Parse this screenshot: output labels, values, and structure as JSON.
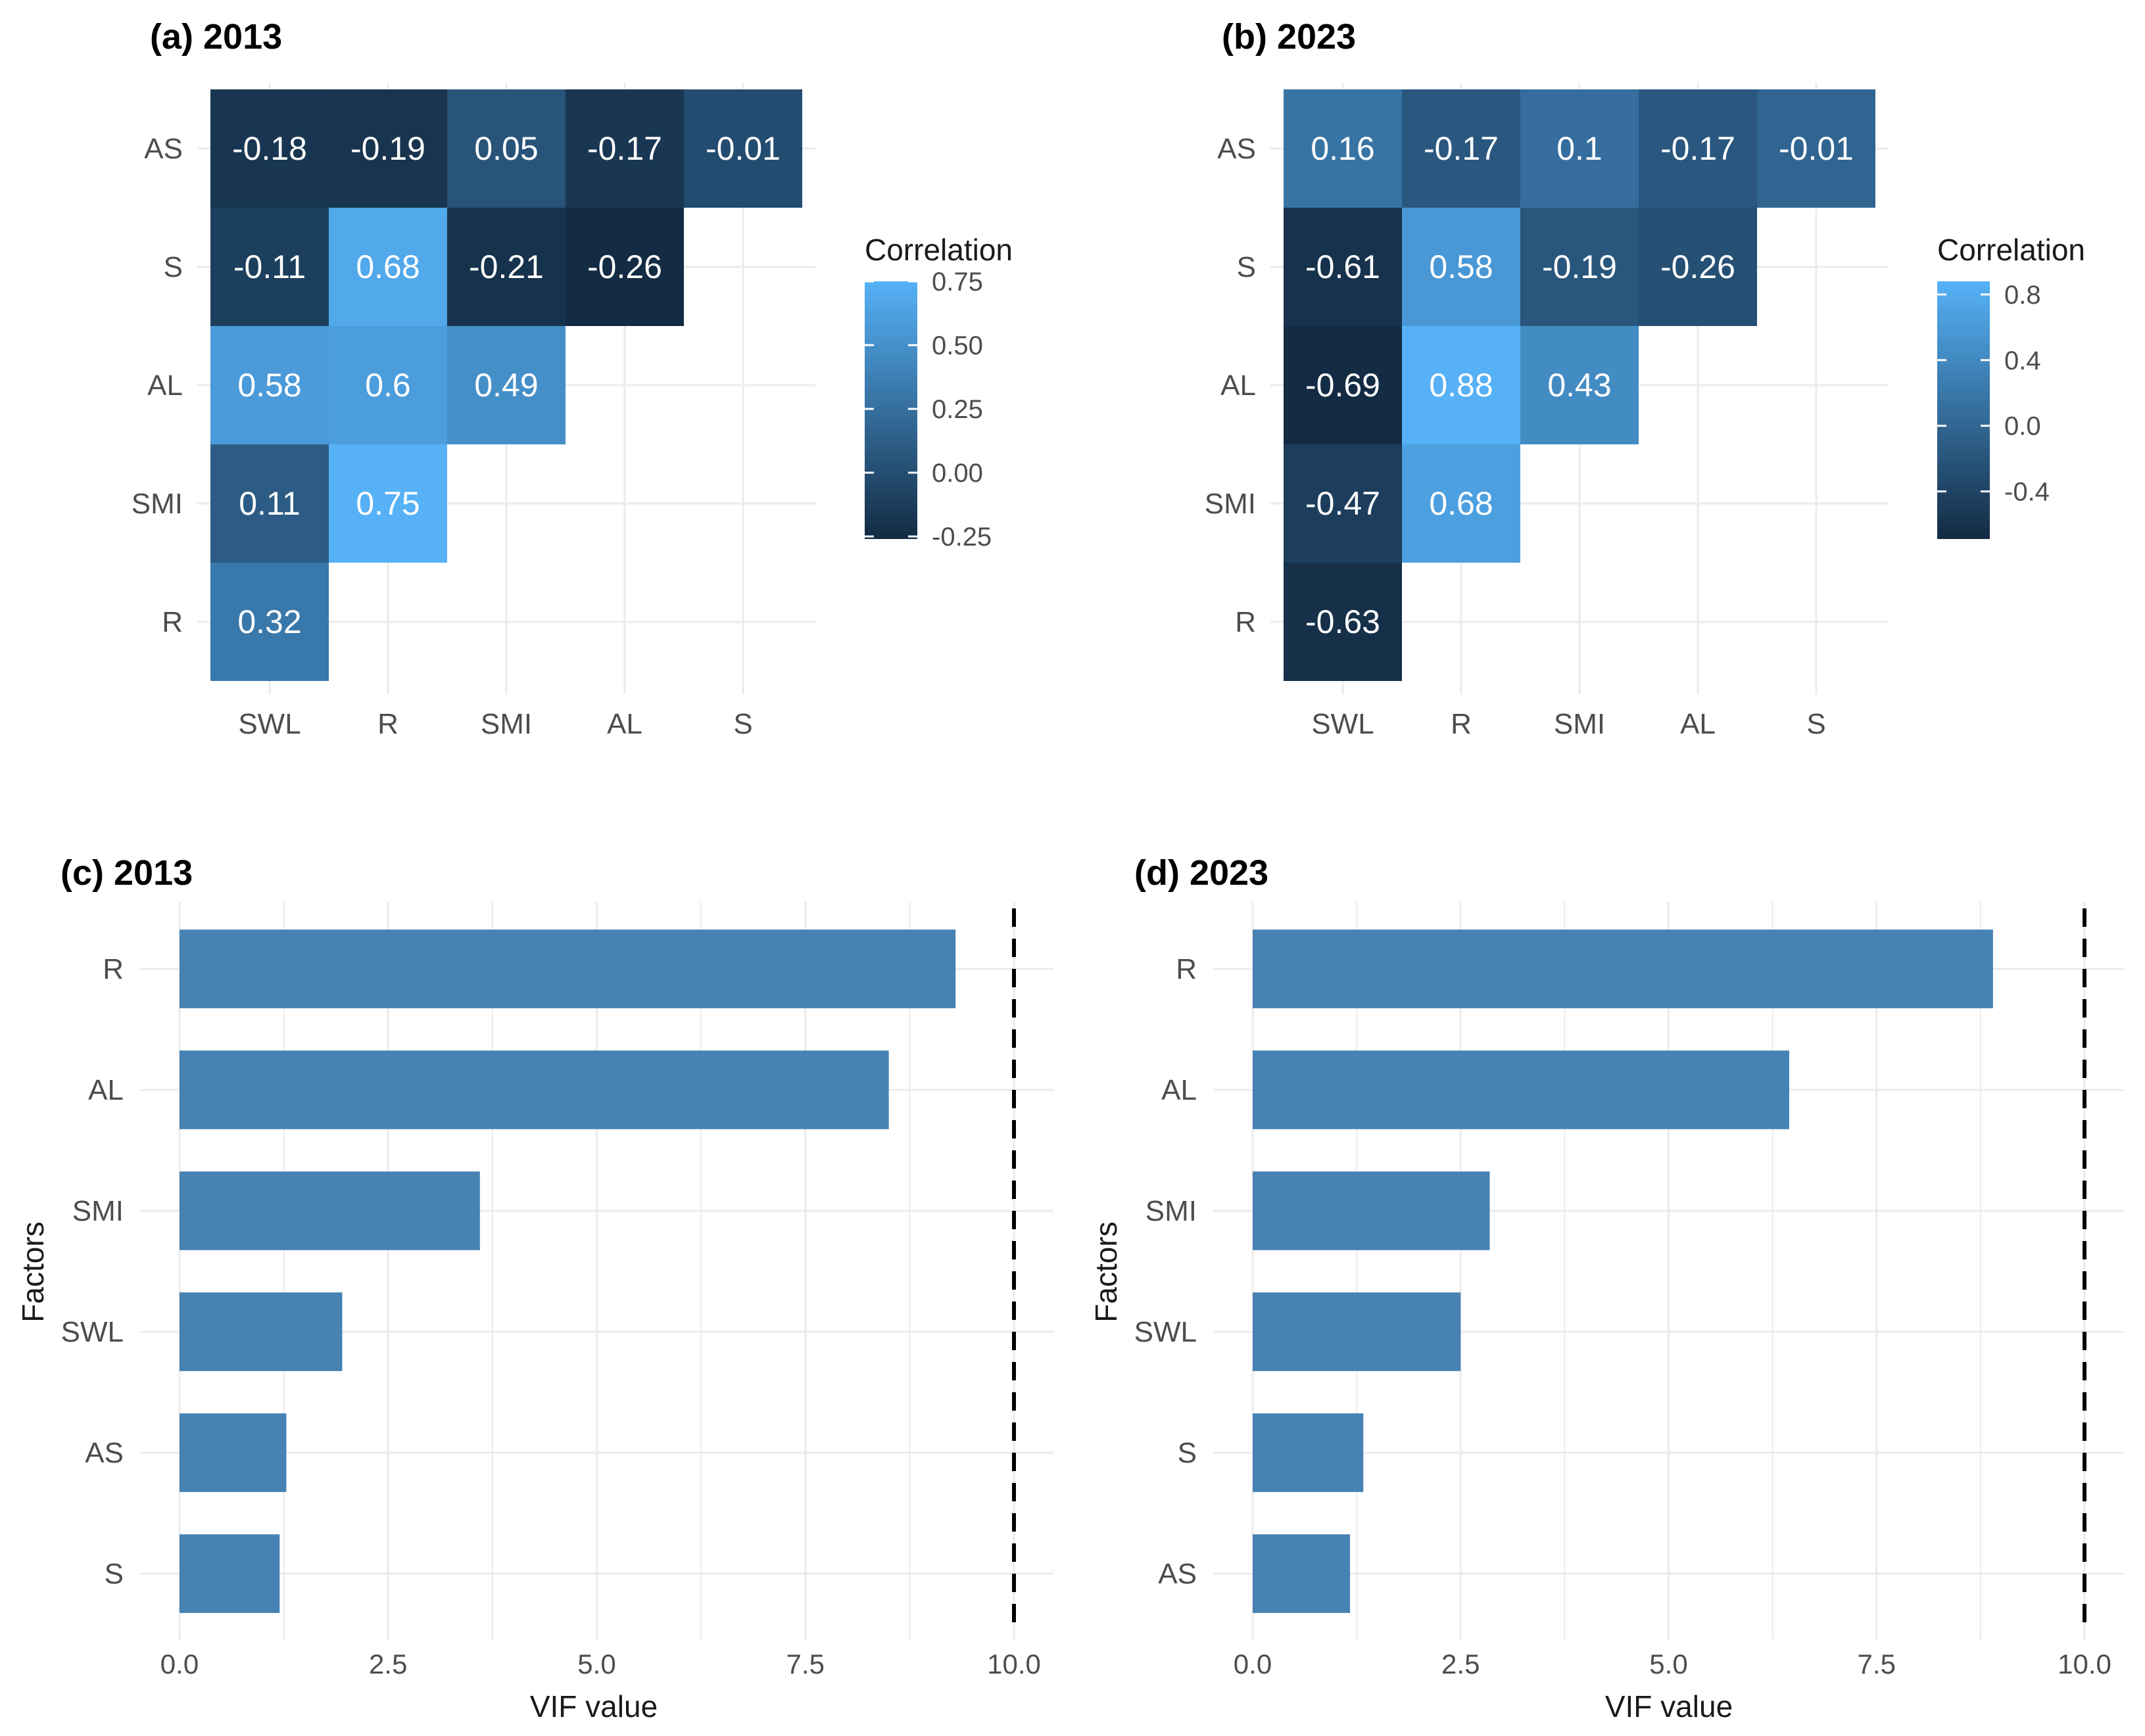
{
  "colors": {
    "low": "#132b43",
    "high": "#56b1f7",
    "bar": "#4682b4",
    "grid": "#ebebeb",
    "text": "#4d4d4d",
    "title": "#000000"
  },
  "chart_data": [
    {
      "type": "heatmap",
      "title": "(a) 2013",
      "legend_title": "Correlation",
      "x_categories": [
        "SWL",
        "R",
        "SMI",
        "AL",
        "S"
      ],
      "y_categories": [
        "AS",
        "S",
        "AL",
        "SMI",
        "R"
      ],
      "color_range": [
        -0.26,
        0.75
      ],
      "legend_ticks": [
        {
          "value": 0.75,
          "label": "0.75"
        },
        {
          "value": 0.5,
          "label": "0.50"
        },
        {
          "value": 0.25,
          "label": "0.25"
        },
        {
          "value": 0.0,
          "label": "0.00"
        },
        {
          "value": -0.25,
          "label": "-0.25"
        }
      ],
      "cells": [
        {
          "row": "AS",
          "col": "SWL",
          "value": -0.18,
          "label": "-0.18"
        },
        {
          "row": "AS",
          "col": "R",
          "value": -0.19,
          "label": "-0.19"
        },
        {
          "row": "AS",
          "col": "SMI",
          "value": 0.05,
          "label": "0.05"
        },
        {
          "row": "AS",
          "col": "AL",
          "value": -0.17,
          "label": "-0.17"
        },
        {
          "row": "AS",
          "col": "S",
          "value": -0.01,
          "label": "-0.01"
        },
        {
          "row": "S",
          "col": "SWL",
          "value": -0.11,
          "label": "-0.11"
        },
        {
          "row": "S",
          "col": "R",
          "value": 0.68,
          "label": "0.68"
        },
        {
          "row": "S",
          "col": "SMI",
          "value": -0.21,
          "label": "-0.21"
        },
        {
          "row": "S",
          "col": "AL",
          "value": -0.26,
          "label": "-0.26"
        },
        {
          "row": "AL",
          "col": "SWL",
          "value": 0.58,
          "label": "0.58"
        },
        {
          "row": "AL",
          "col": "R",
          "value": 0.6,
          "label": "0.6"
        },
        {
          "row": "AL",
          "col": "SMI",
          "value": 0.49,
          "label": "0.49"
        },
        {
          "row": "SMI",
          "col": "SWL",
          "value": 0.11,
          "label": "0.11"
        },
        {
          "row": "SMI",
          "col": "R",
          "value": 0.75,
          "label": "0.75"
        },
        {
          "row": "R",
          "col": "SWL",
          "value": 0.32,
          "label": "0.32"
        }
      ]
    },
    {
      "type": "heatmap",
      "title": "(b) 2023",
      "legend_title": "Correlation",
      "x_categories": [
        "SWL",
        "R",
        "SMI",
        "AL",
        "S"
      ],
      "y_categories": [
        "AS",
        "S",
        "AL",
        "SMI",
        "R"
      ],
      "color_range": [
        -0.69,
        0.88
      ],
      "legend_ticks": [
        {
          "value": 0.8,
          "label": "0.8"
        },
        {
          "value": 0.4,
          "label": "0.4"
        },
        {
          "value": 0.0,
          "label": "0.0"
        },
        {
          "value": -0.4,
          "label": "-0.4"
        }
      ],
      "cells": [
        {
          "row": "AS",
          "col": "SWL",
          "value": 0.16,
          "label": "0.16"
        },
        {
          "row": "AS",
          "col": "R",
          "value": -0.17,
          "label": "-0.17"
        },
        {
          "row": "AS",
          "col": "SMI",
          "value": 0.1,
          "label": "0.1"
        },
        {
          "row": "AS",
          "col": "AL",
          "value": -0.17,
          "label": "-0.17"
        },
        {
          "row": "AS",
          "col": "S",
          "value": -0.01,
          "label": "-0.01"
        },
        {
          "row": "S",
          "col": "SWL",
          "value": -0.61,
          "label": "-0.61"
        },
        {
          "row": "S",
          "col": "R",
          "value": 0.58,
          "label": "0.58"
        },
        {
          "row": "S",
          "col": "SMI",
          "value": -0.19,
          "label": "-0.19"
        },
        {
          "row": "S",
          "col": "AL",
          "value": -0.26,
          "label": "-0.26"
        },
        {
          "row": "AL",
          "col": "SWL",
          "value": -0.69,
          "label": "-0.69"
        },
        {
          "row": "AL",
          "col": "R",
          "value": 0.88,
          "label": "0.88"
        },
        {
          "row": "AL",
          "col": "SMI",
          "value": 0.43,
          "label": "0.43"
        },
        {
          "row": "SMI",
          "col": "SWL",
          "value": -0.47,
          "label": "-0.47"
        },
        {
          "row": "SMI",
          "col": "R",
          "value": 0.68,
          "label": "0.68"
        },
        {
          "row": "R",
          "col": "SWL",
          "value": -0.63,
          "label": "-0.63"
        }
      ]
    },
    {
      "type": "bar",
      "orientation": "horizontal",
      "title": "(c) 2013",
      "xlabel": "VIF value",
      "ylabel": "Factors",
      "xlim": [
        0,
        10
      ],
      "x_ticks": [
        "0.0",
        "2.5",
        "5.0",
        "7.5",
        "10.0"
      ],
      "threshold": 10,
      "categories": [
        "R",
        "AL",
        "SMI",
        "SWL",
        "AS",
        "S"
      ],
      "values": [
        9.3,
        8.5,
        3.6,
        1.95,
        1.28,
        1.2
      ]
    },
    {
      "type": "bar",
      "orientation": "horizontal",
      "title": "(d) 2023",
      "xlabel": "VIF value",
      "ylabel": "Factors",
      "xlim": [
        0,
        10
      ],
      "x_ticks": [
        "0.0",
        "2.5",
        "5.0",
        "7.5",
        "10.0"
      ],
      "threshold": 10,
      "categories": [
        "R",
        "AL",
        "SMI",
        "SWL",
        "S",
        "AS"
      ],
      "values": [
        8.9,
        6.45,
        2.85,
        2.5,
        1.33,
        1.17
      ]
    }
  ]
}
